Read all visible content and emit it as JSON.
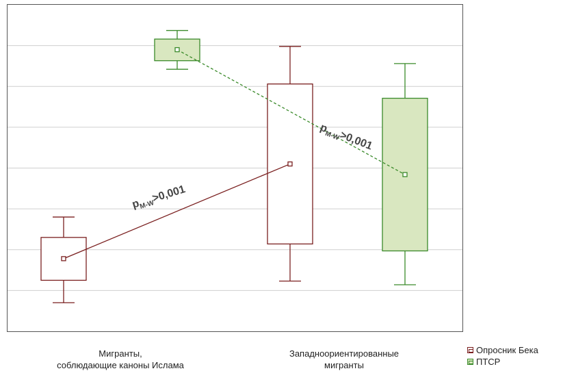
{
  "chart_data": {
    "type": "boxplot",
    "categories": [
      "Мигранты,\nсоблюдающие каноны Ислама",
      "Западноориентированные\nмигранты"
    ],
    "series": [
      {
        "name": "Опросник Бека",
        "color": "#7a1f1f",
        "fill": "#ffffff",
        "boxes": [
          {
            "whisker_low": 0.7,
            "q1": 1.25,
            "mean": 1.78,
            "q3": 2.3,
            "whisker_high": 2.8
          },
          {
            "whisker_low": 1.23,
            "q1": 2.14,
            "mean": 4.1,
            "q3": 6.06,
            "whisker_high": 6.98
          }
        ]
      },
      {
        "name": "ПТСР",
        "color": "#3a8a2a",
        "fill": "#d9e7c0",
        "boxes": [
          {
            "whisker_low": 6.42,
            "q1": 6.63,
            "mean": 6.9,
            "q3": 7.16,
            "whisker_high": 7.37
          },
          {
            "whisker_low": 1.14,
            "q1": 1.97,
            "mean": 3.84,
            "q3": 5.71,
            "whisker_high": 6.56
          }
        ]
      }
    ],
    "annotations": [
      "p",
      "M-W",
      ">0,001"
    ],
    "ylim": [
      0,
      8
    ],
    "grid": true,
    "legend": "bottom-right"
  }
}
